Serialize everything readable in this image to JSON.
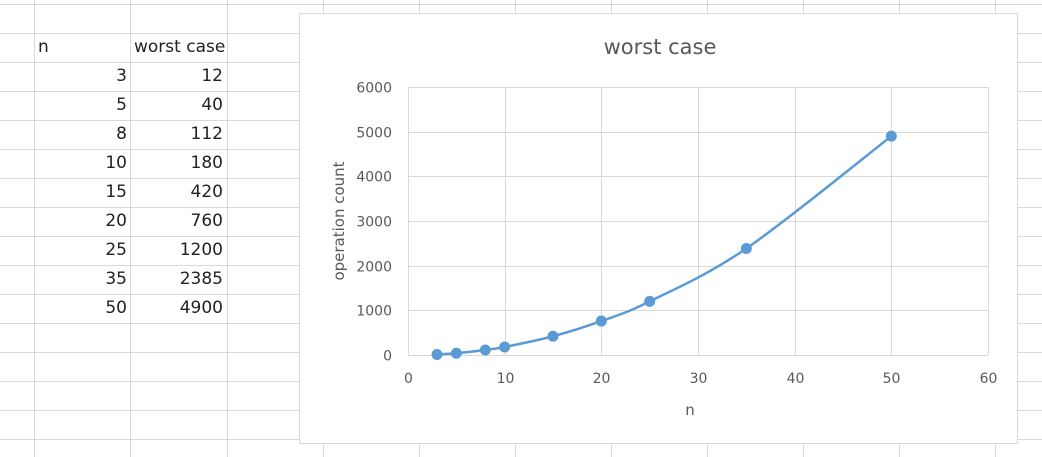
{
  "sheet": {
    "header_n": "n",
    "header_worst": "worst case",
    "rows": [
      {
        "n": "3",
        "worst": "12"
      },
      {
        "n": "5",
        "worst": "40"
      },
      {
        "n": "8",
        "worst": "112"
      },
      {
        "n": "10",
        "worst": "180"
      },
      {
        "n": "15",
        "worst": "420"
      },
      {
        "n": "20",
        "worst": "760"
      },
      {
        "n": "25",
        "worst": "1200"
      },
      {
        "n": "35",
        "worst": "2385"
      },
      {
        "n": "50",
        "worst": "4900"
      }
    ]
  },
  "chart_data": {
    "type": "scatter",
    "title": "worst case",
    "xlabel": "n",
    "ylabel": "operation count",
    "xlim": [
      0,
      60
    ],
    "ylim": [
      0,
      6000
    ],
    "xticks": [
      0,
      10,
      20,
      30,
      40,
      50,
      60
    ],
    "yticks": [
      0,
      1000,
      2000,
      3000,
      4000,
      5000,
      6000
    ],
    "x": [
      3,
      5,
      8,
      10,
      15,
      20,
      25,
      35,
      50
    ],
    "y": [
      12,
      40,
      112,
      180,
      420,
      760,
      1200,
      2385,
      4900
    ],
    "smooth_line": true,
    "grid": true,
    "legend": "none",
    "series_color": "#5b9bd5"
  },
  "colors": {
    "gridline": "#d9d9d9",
    "chart_gridline": "#d9d9d9",
    "text": "#595959"
  }
}
